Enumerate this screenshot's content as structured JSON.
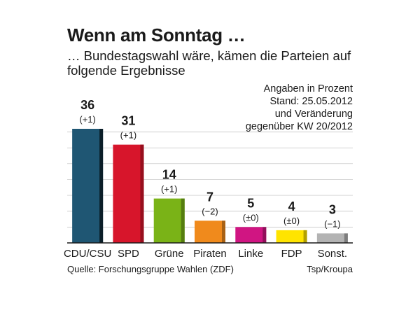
{
  "header": {
    "title": "Wenn am Sonntag …",
    "subtitle": "… Bundestagswahl wäre, kämen die Parteien auf folgende Ergebnisse"
  },
  "notes": [
    "Angaben in Prozent",
    "Stand: 25.05.2012",
    "und Veränderung",
    "gegenüber KW 20/2012"
  ],
  "footer": {
    "source": "Quelle: Forschungsgruppe Wahlen (ZDF)",
    "credit": "Tsp/Kroupa"
  },
  "chart_data": {
    "type": "bar",
    "categories": [
      "CDU/CSU",
      "SPD",
      "Grüne",
      "Piraten",
      "Linke",
      "FDP",
      "Sonst."
    ],
    "values": [
      36,
      31,
      14,
      7,
      5,
      4,
      3
    ],
    "changes": [
      "(+1)",
      "(+1)",
      "(+1)",
      "(−2)",
      "(±0)",
      "(±0)",
      "(−1)"
    ],
    "colors": [
      "#1f5673",
      "#d7152b",
      "#7ab317",
      "#f08a1c",
      "#d01582",
      "#ffe400",
      "#b3b3b3"
    ],
    "ylim": [
      0,
      36
    ],
    "grid": true
  }
}
